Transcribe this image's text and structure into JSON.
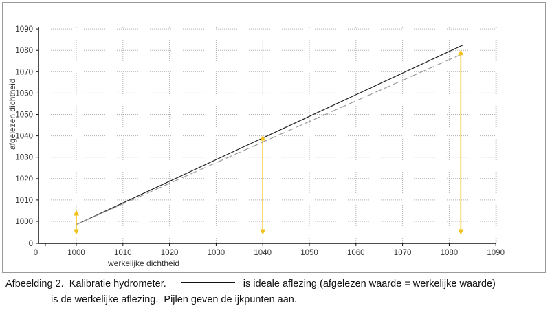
{
  "chart_data": {
    "type": "line",
    "xlabel": "werkelijke dichtheid",
    "ylabel": "afgelezen dichtheid",
    "x_ticks": [
      "0",
      "1000",
      "1010",
      "1020",
      "1030",
      "1040",
      "1050",
      "1060",
      "1070",
      "1080",
      "1090"
    ],
    "y_ticks": [
      "0",
      "1000",
      "1010",
      "1020",
      "1030",
      "1040",
      "1050",
      "1060",
      "1070",
      "1080",
      "1090"
    ],
    "axis_break": "0 -> 1000",
    "xlim": [
      995,
      1090
    ],
    "ylim": [
      995,
      1090
    ],
    "grid": true,
    "series": [
      {
        "style": "solid",
        "color": "#222222",
        "x": [
          1000,
          1083
        ],
        "y": [
          998.5,
          1082.5
        ]
      },
      {
        "style": "dashed",
        "color": "#999999",
        "x": [
          1000,
          1083
        ],
        "y": [
          998.5,
          1078.5
        ]
      }
    ],
    "arrows": [
      {
        "x": 1000,
        "from": 995,
        "to": 1004,
        "color": "#f2c21b"
      },
      {
        "x": 1040,
        "from": 995,
        "to": 1039,
        "color": "#f2c21b"
      },
      {
        "x": 1082.5,
        "from": 995,
        "to": 1079,
        "color": "#f2c21b"
      }
    ]
  },
  "caption": {
    "line1_start": "Afbeelding 2.  Kalibratie hydrometer.",
    "line1_end": "is ideale aflezing (afgelezen waarde = werkelijke waarde)",
    "line2": "is de werkelijke aflezing.  Pijlen geven de ijkpunten aan."
  }
}
